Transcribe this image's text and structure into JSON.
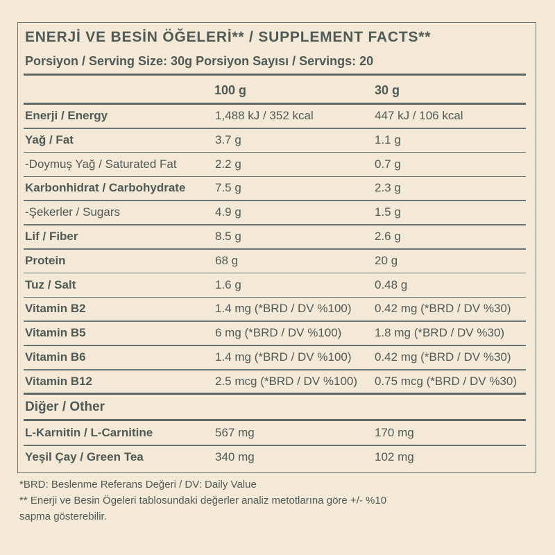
{
  "title": "ENERJİ VE BESİN ÖĞELERİ** / SUPPLEMENT FACTS**",
  "serving": "Porsiyon / Serving Size: 30g Porsiyon Sayısı / Servings: 20",
  "columns": {
    "col1": "100 g",
    "col2": "30 g"
  },
  "rows": [
    {
      "label": "Enerji / Energy",
      "bold": true,
      "v100": "1,488 kJ / 352 kcal",
      "v30": "447 kJ / 106 kcal"
    },
    {
      "label": "Yağ / Fat",
      "bold": true,
      "v100": "3.7 g",
      "v30": "1.1 g"
    },
    {
      "label": "-Doymuş Yağ / Saturated Fat",
      "bold": false,
      "v100": "2.2 g",
      "v30": "0.7 g"
    },
    {
      "label": "Karbonhidrat / Carbohydrate",
      "bold": true,
      "v100": "7.5 g",
      "v30": "2.3 g"
    },
    {
      "label": "-Şekerler / Sugars",
      "bold": false,
      "v100": "4.9 g",
      "v30": "1.5 g"
    },
    {
      "label": "Lif / Fiber",
      "bold": true,
      "v100": "8.5 g",
      "v30": "2.6 g"
    },
    {
      "label": "Protein",
      "bold": true,
      "v100": "68  g",
      "v30": "20  g"
    },
    {
      "label": "Tuz / Salt",
      "bold": true,
      "v100": "1.6 g",
      "v30": "0.48 g"
    },
    {
      "label": "Vitamin B2",
      "bold": true,
      "v100": "1.4 mg (*BRD / DV %100)",
      "v30": "0.42 mg (*BRD / DV %30)"
    },
    {
      "label": "Vitamin B5",
      "bold": true,
      "v100": "6 mg (*BRD / DV %100)",
      "v30": "1.8 mg (*BRD / DV %30)"
    },
    {
      "label": "Vitamin B6",
      "bold": true,
      "v100": "1.4 mg (*BRD / DV %100)",
      "v30": "0.42 mg (*BRD / DV %30)"
    },
    {
      "label": "Vitamin B12",
      "bold": true,
      "v100": "2.5 mcg (*BRD / DV %100)",
      "v30": "0.75 mcg (*BRD / DV %30)"
    }
  ],
  "other_heading": "Diğer / Other",
  "other_rows": [
    {
      "label": "L-Karnitin / L-Carnitine",
      "v100": "567 mg",
      "v30": "170 mg"
    },
    {
      "label": "Yeşil Çay / Green Tea",
      "v100": "340 mg",
      "v30": "102 mg"
    }
  ],
  "footnotes": [
    "*BRD: Beslenme Referans Değeri / DV: Daily Value",
    "** Enerji ve Besin Ögeleri tablosundaki değerler analiz metotlarına göre +/- %10",
    "sapma gösterebilir."
  ]
}
